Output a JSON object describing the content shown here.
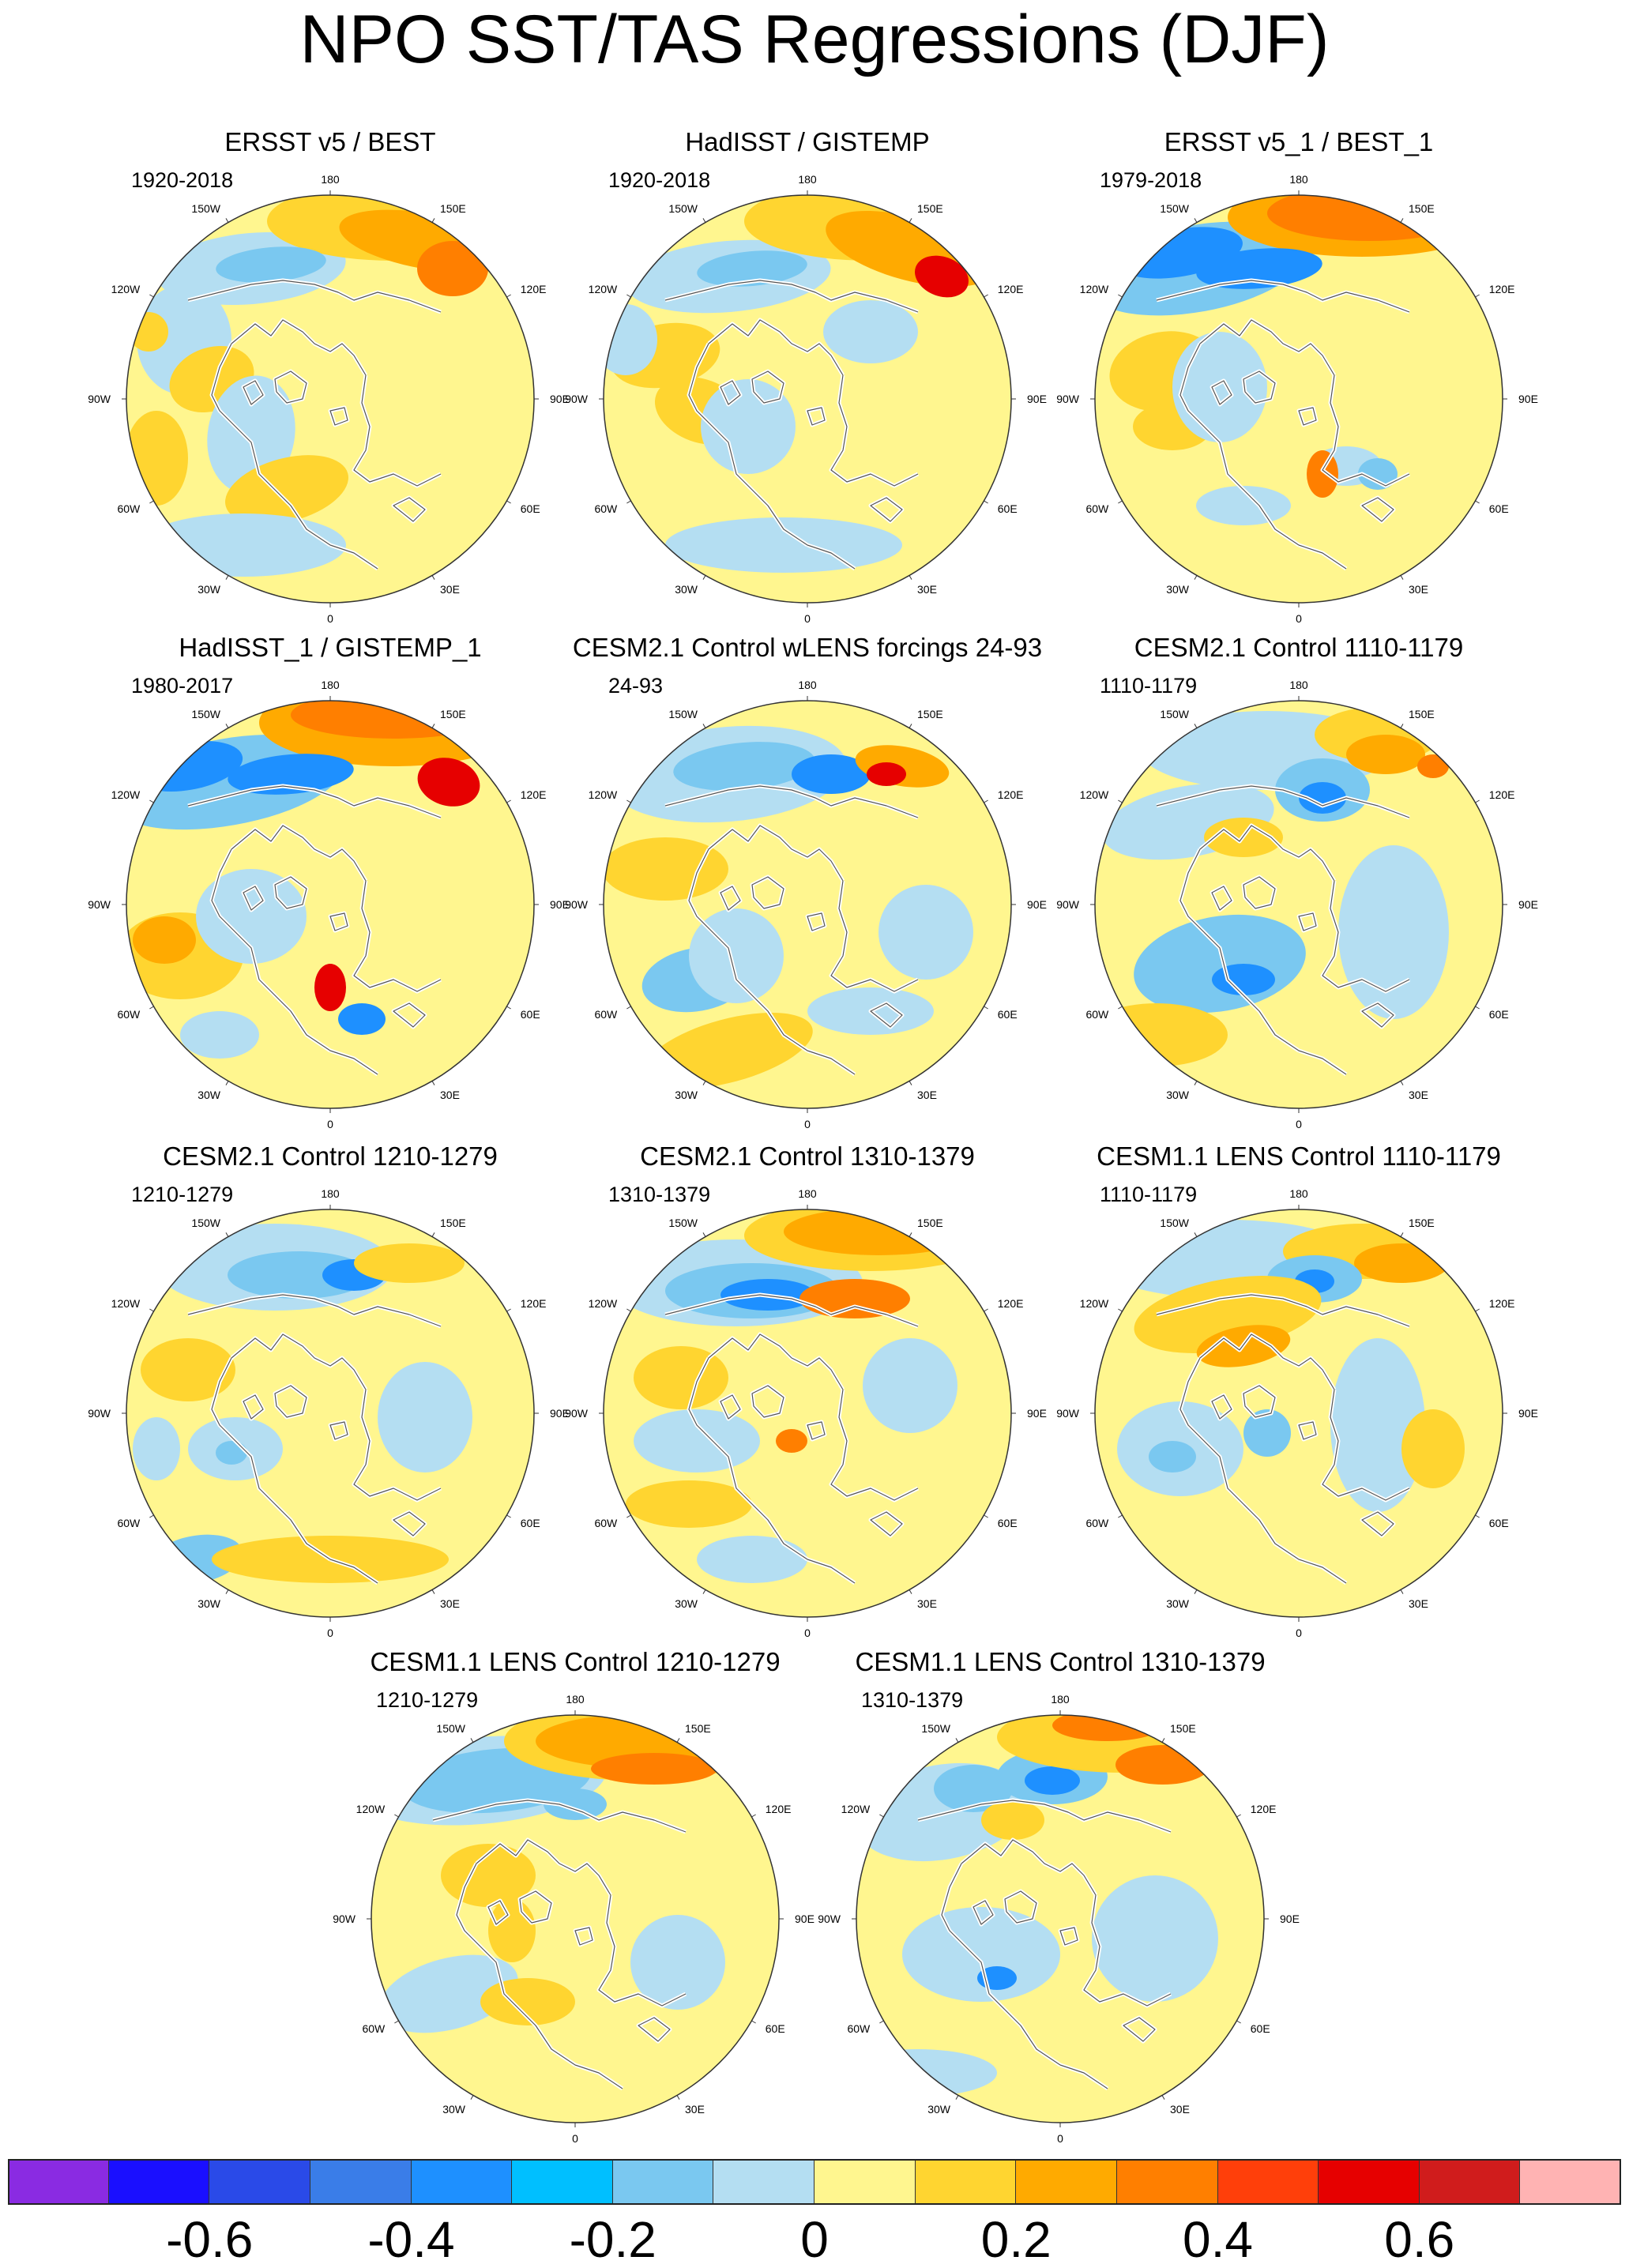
{
  "figure": {
    "title": "NPO SST/TAS Regressions (DJF)"
  },
  "map_labels": [
    "180",
    "150W",
    "150E",
    "120W",
    "120E",
    "90W",
    "90E",
    "60W",
    "60E",
    "30W",
    "30E",
    "0"
  ],
  "panels": [
    {
      "title": "ERSST v5 / BEST",
      "period": "1920-2018"
    },
    {
      "title": "HadISST / GISTEMP",
      "period": "1920-2018"
    },
    {
      "title": "ERSST v5_1 / BEST_1",
      "period": "1979-2018"
    },
    {
      "title": "HadISST_1 / GISTEMP_1",
      "period": "1980-2017"
    },
    {
      "title": "CESM2.1 Control wLENS forcings 24-93",
      "period": "24-93"
    },
    {
      "title": "CESM2.1 Control 1110-1179",
      "period": "1110-1179"
    },
    {
      "title": "CESM2.1 Control 1210-1279",
      "period": "1210-1279"
    },
    {
      "title": "CESM2.1 Control 1310-1379",
      "period": "1310-1379"
    },
    {
      "title": "CESM1.1 LENS Control 1110-1179",
      "period": "1110-1179"
    },
    {
      "title": "CESM1.1 LENS Control 1210-1279",
      "period": "1210-1279"
    },
    {
      "title": "CESM1.1 LENS Control 1310-1379",
      "period": "1310-1379"
    }
  ],
  "colorbar": {
    "colors": [
      "#8a2be2",
      "#1a0fff",
      "#2a4ae8",
      "#3a7de8",
      "#1e90ff",
      "#00bfff",
      "#7ac8f0",
      "#b4def2",
      "#fff68f",
      "#ffd530",
      "#ffaa00",
      "#ff7f00",
      "#ff3f0a",
      "#e60000",
      "#d01c1c",
      "#ffb3b3"
    ],
    "tick_labels": [
      "-0.6",
      "-0.4",
      "-0.2",
      "0",
      "0.2",
      "0.4",
      "0.6"
    ],
    "tick_values": [
      -0.6,
      -0.4,
      -0.2,
      0,
      0.2,
      0.4,
      0.6
    ],
    "range": [
      -0.8,
      0.8
    ]
  }
}
